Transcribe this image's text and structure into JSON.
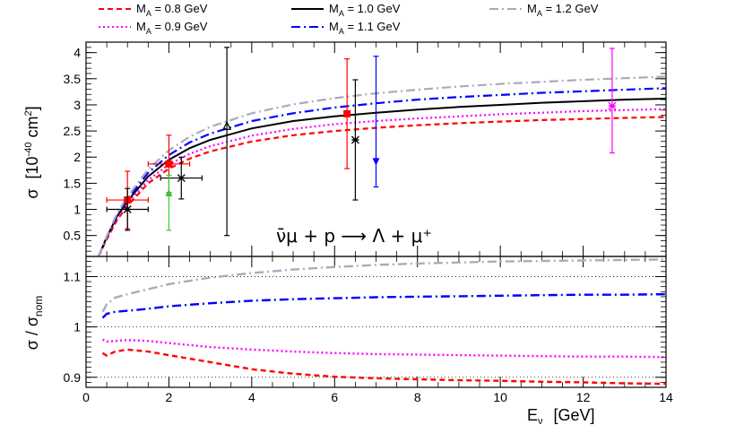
{
  "legend": [
    {
      "label": "M_A = 0.8 GeV",
      "label_main": "M",
      "label_sub": "A",
      "label_rest": " = 0.8 GeV",
      "color": "#ff0000",
      "dash": "dash"
    },
    {
      "label": "M_A = 1.0 GeV",
      "label_main": "M",
      "label_sub": "A",
      "label_rest": " = 1.0 GeV",
      "color": "#000000",
      "dash": "solid"
    },
    {
      "label": "M_A = 1.2 GeV",
      "label_main": "M",
      "label_sub": "A",
      "label_rest": " = 1.2 GeV",
      "color": "#aaaac0",
      "dash": "dashdot"
    },
    {
      "label": "M_A = 0.9 GeV",
      "label_main": "M",
      "label_sub": "A",
      "label_rest": " = 0.9 GeV",
      "color": "#ff00ff",
      "dash": "dot"
    },
    {
      "label": "M_A = 1.1 GeV",
      "label_main": "M",
      "label_sub": "A",
      "label_rest": " = 1.1 GeV",
      "color": "#0000ff",
      "dash": "dashdot"
    }
  ],
  "reaction_text": "ν̄μ + p ⟶ Λ + μ⁺",
  "chart_data": [
    {
      "type": "line",
      "panel": "top",
      "ylabel": "σ [10^-40 cm^2]",
      "ylabel_parts": {
        "sigma": "σ",
        "open": "[10",
        "exp": "-40",
        "unit": " cm",
        "unit_exp": "2",
        "close": "]"
      },
      "xlim": [
        0,
        14
      ],
      "ylim": [
        0.1,
        4.2
      ],
      "y_ticks": [
        0.5,
        1,
        1.5,
        2,
        2.5,
        3,
        3.5,
        4
      ],
      "y_tick_labels": [
        "0.5",
        "1",
        "1.5",
        "2",
        "2.5",
        "3",
        "3.5",
        "4"
      ],
      "x": [
        0.3,
        0.5,
        0.75,
        1,
        1.5,
        2,
        2.5,
        3,
        4,
        5,
        6,
        7,
        8,
        9,
        10,
        11,
        12,
        13,
        14
      ],
      "series": [
        {
          "name": "M_A = 0.8 GeV",
          "color": "#ff0000",
          "dash": "dash",
          "values": [
            0.1,
            0.43,
            0.8,
            1.07,
            1.5,
            1.78,
            1.97,
            2.11,
            2.3,
            2.42,
            2.5,
            2.56,
            2.61,
            2.65,
            2.68,
            2.71,
            2.73,
            2.75,
            2.77
          ]
        },
        {
          "name": "M_A = 0.9 GeV",
          "color": "#ff00ff",
          "dash": "dot",
          "values": [
            0.1,
            0.45,
            0.83,
            1.11,
            1.56,
            1.86,
            2.06,
            2.21,
            2.41,
            2.54,
            2.63,
            2.69,
            2.74,
            2.78,
            2.82,
            2.85,
            2.88,
            2.9,
            2.92
          ]
        },
        {
          "name": "M_A = 1.0 GeV",
          "color": "#000000",
          "dash": "solid",
          "values": [
            0.1,
            0.47,
            0.87,
            1.16,
            1.63,
            1.95,
            2.17,
            2.33,
            2.55,
            2.69,
            2.78,
            2.85,
            2.91,
            2.96,
            3.0,
            3.04,
            3.07,
            3.1,
            3.12
          ]
        },
        {
          "name": "M_A = 1.1 GeV",
          "color": "#0000ff",
          "dash": "dashdot",
          "values": [
            0.1,
            0.48,
            0.9,
            1.2,
            1.7,
            2.04,
            2.28,
            2.45,
            2.69,
            2.84,
            2.95,
            3.03,
            3.1,
            3.15,
            3.19,
            3.23,
            3.26,
            3.29,
            3.32
          ]
        },
        {
          "name": "M_A = 1.2 GeV",
          "color": "#aaaac0",
          "dash": "dashdot",
          "values": [
            0.1,
            0.49,
            0.93,
            1.24,
            1.77,
            2.13,
            2.39,
            2.58,
            2.84,
            3.01,
            3.13,
            3.22,
            3.29,
            3.35,
            3.4,
            3.44,
            3.48,
            3.51,
            3.54
          ]
        }
      ],
      "points": [
        {
          "x": 1.0,
          "y": 1.18,
          "xerr": [
            0.5,
            0.5
          ],
          "yerr": [
            0.55,
            0.55
          ],
          "color": "#ff0000",
          "marker": "square"
        },
        {
          "x": 2.0,
          "y": 1.87,
          "xerr": [
            0.5,
            0.5
          ],
          "yerr": [
            0.55,
            0.55
          ],
          "color": "#ff0000",
          "marker": "square"
        },
        {
          "x": 6.3,
          "y": 2.83,
          "xerr": [
            0,
            0
          ],
          "yerr": [
            1.05,
            1.05
          ],
          "color": "#ff0000",
          "marker": "square"
        },
        {
          "x": 1.0,
          "y": 1.0,
          "xerr": [
            0.5,
            0.5
          ],
          "yerr": [
            0.4,
            0.4
          ],
          "color": "#000000",
          "marker": "star"
        },
        {
          "x": 2.3,
          "y": 1.6,
          "xerr": [
            0.5,
            0.5
          ],
          "yerr": [
            0.4,
            0.4
          ],
          "color": "#000000",
          "marker": "star"
        },
        {
          "x": 6.5,
          "y": 2.33,
          "xerr": [
            0,
            0
          ],
          "yerr": [
            1.15,
            1.15
          ],
          "color": "#000000",
          "marker": "star"
        },
        {
          "x": 3.4,
          "y": 2.6,
          "xerr": [
            0,
            0
          ],
          "yerr": [
            2.1,
            1.5
          ],
          "color": "#000000",
          "marker": "open-triangle"
        },
        {
          "x": 2.0,
          "y": 1.3,
          "xerr": [
            0,
            0
          ],
          "yerr": [
            0.7,
            0.35
          ],
          "color": "#33cc33",
          "marker": "triangle-up"
        },
        {
          "x": 7.0,
          "y": 1.93,
          "xerr": [
            0,
            0
          ],
          "yerr": [
            0.5,
            2.0
          ],
          "color": "#0000ff",
          "marker": "triangle-down"
        },
        {
          "x": 12.7,
          "y": 2.98,
          "xerr": [
            0,
            0
          ],
          "yerr": [
            0.9,
            1.1
          ],
          "color": "#ff00ff",
          "marker": "star"
        }
      ]
    },
    {
      "type": "line",
      "panel": "bottom",
      "ylabel": "σ / σ_nom",
      "ylabel_parts": {
        "sigma": "σ / σ",
        "sub": "nom"
      },
      "xlabel": "E_ν [GeV]",
      "xlabel_parts": {
        "main": "E",
        "sub": "ν",
        "unit": "[GeV]"
      },
      "xlim": [
        0,
        14
      ],
      "ylim": [
        0.88,
        1.14
      ],
      "x_ticks": [
        0,
        2,
        4,
        6,
        8,
        10,
        12,
        14
      ],
      "x_tick_labels": [
        "0",
        "2",
        "4",
        "6",
        "8",
        "10",
        "12",
        "14"
      ],
      "y_ticks": [
        0.9,
        1,
        1.1
      ],
      "y_tick_labels": [
        "0.9",
        "1",
        "1.1"
      ],
      "grid": "dotted horizontal at 0.9, 1, 1.1",
      "x": [
        0.4,
        0.5,
        0.7,
        1.0,
        1.5,
        2,
        3,
        4,
        5,
        6,
        7,
        8,
        9,
        10,
        11,
        12,
        13,
        14
      ],
      "series": [
        {
          "name": "M_A = 0.8 GeV",
          "color": "#ff0000",
          "dash": "dash",
          "values": [
            0.948,
            0.943,
            0.951,
            0.955,
            0.951,
            0.944,
            0.93,
            0.916,
            0.907,
            0.901,
            0.898,
            0.896,
            0.894,
            0.893,
            0.891,
            0.89,
            0.888,
            0.887
          ]
        },
        {
          "name": "M_A = 0.9 GeV",
          "color": "#ff00ff",
          "dash": "dot",
          "values": [
            0.975,
            0.971,
            0.972,
            0.974,
            0.972,
            0.968,
            0.96,
            0.955,
            0.951,
            0.948,
            0.946,
            0.945,
            0.944,
            0.943,
            0.942,
            0.941,
            0.941,
            0.94
          ]
        },
        {
          "name": "M_A = 1.1 GeV",
          "color": "#0000ff",
          "dash": "dashdot",
          "values": [
            1.018,
            1.026,
            1.03,
            1.032,
            1.036,
            1.041,
            1.047,
            1.052,
            1.055,
            1.057,
            1.059,
            1.06,
            1.061,
            1.062,
            1.063,
            1.064,
            1.064,
            1.065
          ]
        },
        {
          "name": "M_A = 1.2 GeV",
          "color": "#aaaac0",
          "dash": "dashdot",
          "values": [
            1.03,
            1.045,
            1.058,
            1.065,
            1.075,
            1.085,
            1.098,
            1.107,
            1.114,
            1.119,
            1.123,
            1.126,
            1.128,
            1.13,
            1.131,
            1.132,
            1.133,
            1.134
          ]
        }
      ]
    }
  ]
}
